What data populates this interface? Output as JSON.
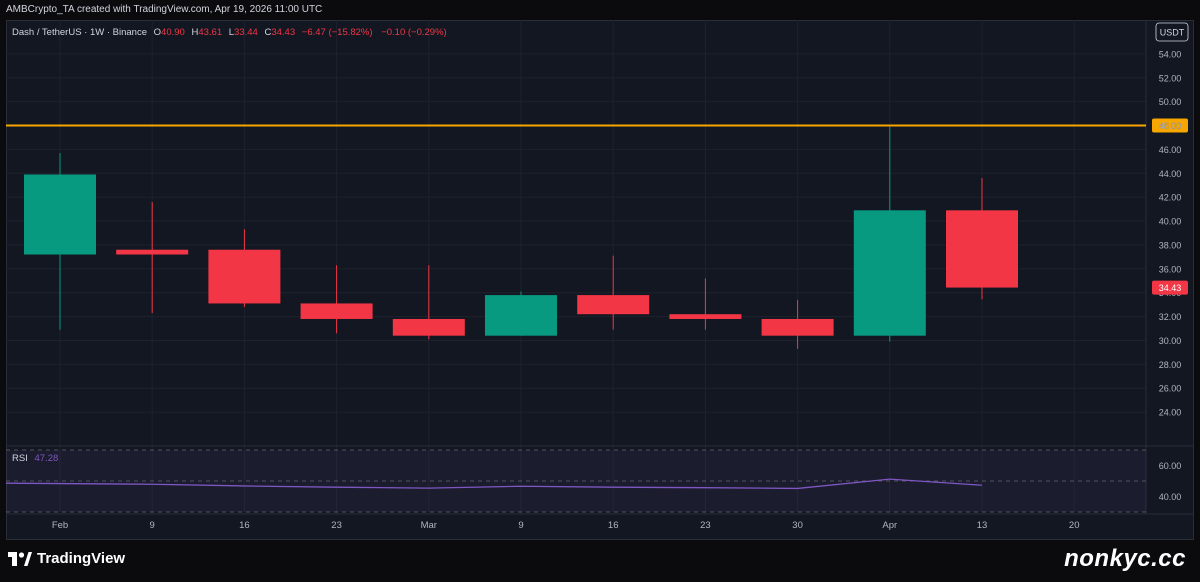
{
  "header": {
    "credit": "AMBCrypto_TA created with TradingView.com, Apr 19, 2026 11:00 UTC"
  },
  "legend": {
    "symbol": "Dash / TetherUS · 1W · Binance",
    "o_label": "O",
    "o_value": "40.90",
    "h_label": "H",
    "h_value": "43.61",
    "l_label": "L",
    "l_value": "33.44",
    "c_label": "C",
    "c_value": "34.43",
    "change": "−6.47 (−15.82%)",
    "extra": "−0.10 (−0.29%)"
  },
  "currency": "USDT",
  "chart_data": {
    "type": "candlestick",
    "timeframe": "1W",
    "x_labels": [
      "Feb",
      "9",
      "16",
      "23",
      "Mar",
      "9",
      "16",
      "23",
      "30",
      "Apr",
      "13",
      "20"
    ],
    "ylim": [
      22,
      56
    ],
    "y_ticks": [
      "54.00",
      "52.00",
      "50.00",
      "48.00",
      "46.00",
      "44.00",
      "42.00",
      "40.00",
      "38.00",
      "36.00",
      "34.00",
      "32.00",
      "30.00",
      "28.00",
      "26.00",
      "24.00"
    ],
    "candles": [
      {
        "o": 37.2,
        "h": 45.7,
        "l": 30.9,
        "c": 43.9
      },
      {
        "o": 37.6,
        "h": 41.6,
        "l": 32.3,
        "c": 37.2
      },
      {
        "o": 37.6,
        "h": 39.3,
        "l": 32.8,
        "c": 33.1
      },
      {
        "o": 33.1,
        "h": 36.3,
        "l": 30.6,
        "c": 31.8
      },
      {
        "o": 31.8,
        "h": 36.3,
        "l": 30.1,
        "c": 30.4
      },
      {
        "o": 30.4,
        "h": 34.1,
        "l": 30.4,
        "c": 33.8
      },
      {
        "o": 33.8,
        "h": 37.1,
        "l": 30.9,
        "c": 32.2
      },
      {
        "o": 32.2,
        "h": 35.2,
        "l": 30.9,
        "c": 31.8
      },
      {
        "o": 31.8,
        "h": 33.4,
        "l": 29.3,
        "c": 30.4
      },
      {
        "o": 30.4,
        "h": 47.9,
        "l": 29.9,
        "c": 40.9
      },
      {
        "o": 40.9,
        "h": 43.61,
        "l": 33.44,
        "c": 34.43
      }
    ],
    "resistance_level": "48.00",
    "last_price": "34.43",
    "rsi": {
      "label": "RSI",
      "value": "47.28",
      "ticks": [
        "60.00",
        "40.00"
      ],
      "ylim": [
        30,
        70
      ],
      "band": [
        30,
        70
      ],
      "midline": 50,
      "values": [
        48.6,
        47.9,
        46.8,
        46.0,
        45.4,
        46.6,
        46.0,
        45.7,
        45.2,
        51.2,
        47.28
      ]
    },
    "colors": {
      "up": "#089981",
      "down": "#f23645",
      "level": "#f7a600",
      "rsi": "#7e57c2"
    }
  },
  "footer": {
    "logo_text": "TradingView",
    "watermark": "nonkyc.cc"
  }
}
